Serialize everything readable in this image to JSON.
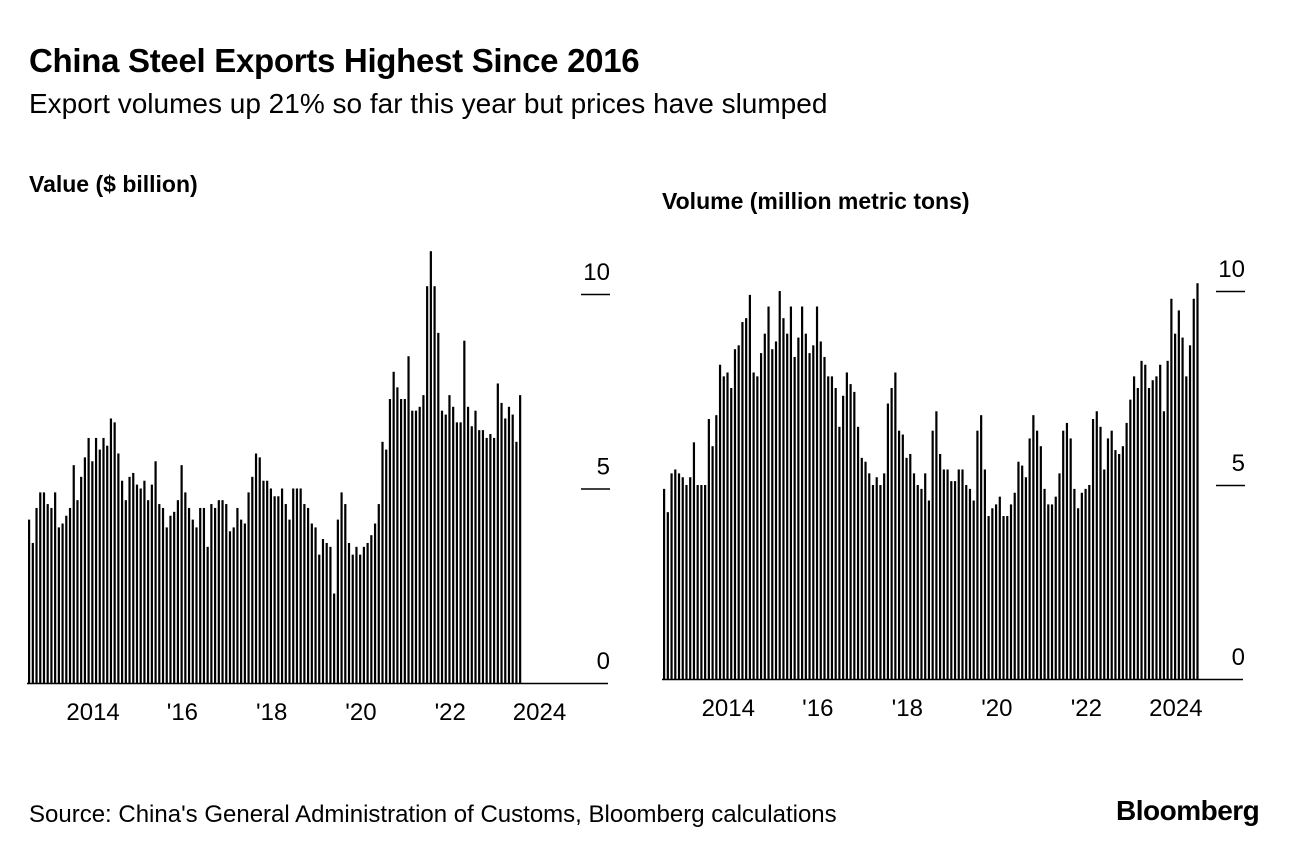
{
  "header": {
    "title": "China Steel Exports Highest Since 2016",
    "subtitle": "Export volumes up 21% so far this year but prices have slumped"
  },
  "footer": {
    "source": "Source: China's General Administration of Customs, Bloomberg calculations",
    "logo": "Bloomberg"
  },
  "colors": {
    "bar": "#000000",
    "background": "#ffffff"
  },
  "chart_data": [
    {
      "type": "bar",
      "title": "Value ($ billion)",
      "start": "2013-01",
      "frequency": "monthly",
      "xlabel": "",
      "ylabel": "Value ($ billion)",
      "ylim": [
        0,
        10
      ],
      "yticks": [
        "0",
        "5",
        "10"
      ],
      "xticks": [
        {
          "label": "2014",
          "year": 2014
        },
        {
          "label": "'16",
          "year": 2016
        },
        {
          "label": "'18",
          "year": 2018
        },
        {
          "label": "'20",
          "year": 2020
        },
        {
          "label": "'22",
          "year": 2022
        },
        {
          "label": "2024",
          "year": 2024
        }
      ],
      "values": [
        4.2,
        3.6,
        4.5,
        4.9,
        4.9,
        4.6,
        4.5,
        4.9,
        4.0,
        4.1,
        4.3,
        4.5,
        5.6,
        4.7,
        5.3,
        5.8,
        6.3,
        5.7,
        6.3,
        6.0,
        6.3,
        6.1,
        6.8,
        6.7,
        5.9,
        5.2,
        4.7,
        5.3,
        5.4,
        5.1,
        5.0,
        5.2,
        4.7,
        5.1,
        5.7,
        4.6,
        4.5,
        4.0,
        4.3,
        4.4,
        4.7,
        5.6,
        4.9,
        4.5,
        4.2,
        4.0,
        4.5,
        4.5,
        3.5,
        4.6,
        4.5,
        4.7,
        4.7,
        4.6,
        3.9,
        4.0,
        4.5,
        4.2,
        4.1,
        4.9,
        5.3,
        5.9,
        5.8,
        5.2,
        5.2,
        5.0,
        4.8,
        4.8,
        5.0,
        4.6,
        4.2,
        5.0,
        5.0,
        5.0,
        4.6,
        4.5,
        4.1,
        4.0,
        3.3,
        3.7,
        3.6,
        3.5,
        2.3,
        4.2,
        4.9,
        4.6,
        3.6,
        3.3,
        3.5,
        3.3,
        3.5,
        3.6,
        3.8,
        4.1,
        4.6,
        6.2,
        6.0,
        7.3,
        8.0,
        7.6,
        7.3,
        7.3,
        8.4,
        7.0,
        7.0,
        7.1,
        7.4,
        10.2,
        11.1,
        10.2,
        9.0,
        7.0,
        6.9,
        7.4,
        7.1,
        6.7,
        6.7,
        8.8,
        7.1,
        6.6,
        7.0,
        6.5,
        6.5,
        6.3,
        6.4,
        6.3,
        7.7,
        7.2,
        6.8,
        7.1,
        6.9,
        6.2,
        7.4
      ]
    },
    {
      "type": "bar",
      "title": "Volume (million metric tons)",
      "start": "2013-01",
      "frequency": "monthly",
      "xlabel": "",
      "ylabel": "Volume (million metric tons)",
      "ylim": [
        0,
        10
      ],
      "yticks": [
        "0",
        "5",
        "10"
      ],
      "xticks": [
        {
          "label": "2014",
          "year": 2014
        },
        {
          "label": "'16",
          "year": 2016
        },
        {
          "label": "'18",
          "year": 2018
        },
        {
          "label": "'20",
          "year": 2020
        },
        {
          "label": "'22",
          "year": 2022
        },
        {
          "label": "2024",
          "year": 2024
        }
      ],
      "values": [
        4.9,
        4.3,
        5.3,
        5.4,
        5.3,
        5.2,
        5.0,
        5.2,
        6.1,
        5.0,
        5.0,
        5.0,
        6.7,
        6.0,
        6.8,
        8.1,
        7.8,
        7.9,
        7.5,
        8.5,
        8.6,
        9.2,
        9.3,
        9.9,
        7.9,
        7.8,
        8.4,
        8.9,
        9.6,
        8.5,
        8.7,
        10.0,
        9.3,
        8.9,
        9.6,
        8.3,
        8.8,
        9.6,
        8.9,
        8.4,
        8.6,
        9.6,
        8.7,
        8.3,
        7.8,
        7.8,
        7.5,
        6.5,
        7.3,
        7.9,
        7.6,
        7.4,
        6.5,
        5.7,
        5.6,
        5.3,
        5.0,
        5.2,
        5.0,
        5.3,
        7.1,
        7.5,
        7.9,
        6.4,
        6.3,
        5.7,
        5.8,
        5.3,
        5.0,
        4.9,
        5.3,
        4.6,
        6.4,
        6.9,
        5.8,
        5.4,
        5.4,
        5.1,
        5.1,
        5.4,
        5.4,
        5.0,
        4.9,
        4.6,
        6.4,
        6.8,
        5.4,
        4.2,
        4.4,
        4.5,
        4.7,
        4.2,
        4.2,
        4.5,
        4.8,
        5.6,
        5.5,
        5.2,
        6.2,
        6.8,
        6.4,
        6.0,
        4.9,
        4.5,
        4.5,
        4.7,
        5.3,
        6.4,
        6.6,
        6.2,
        4.9,
        4.4,
        4.8,
        4.9,
        5.0,
        6.7,
        6.9,
        6.5,
        5.4,
        6.2,
        6.4,
        5.9,
        5.8,
        6.0,
        6.6,
        7.2,
        7.8,
        7.5,
        8.2,
        8.1,
        7.5,
        7.7,
        7.8,
        8.1,
        6.9,
        8.2,
        9.8,
        8.9,
        9.5,
        8.8,
        7.8,
        8.6,
        9.8,
        10.2
      ]
    }
  ]
}
